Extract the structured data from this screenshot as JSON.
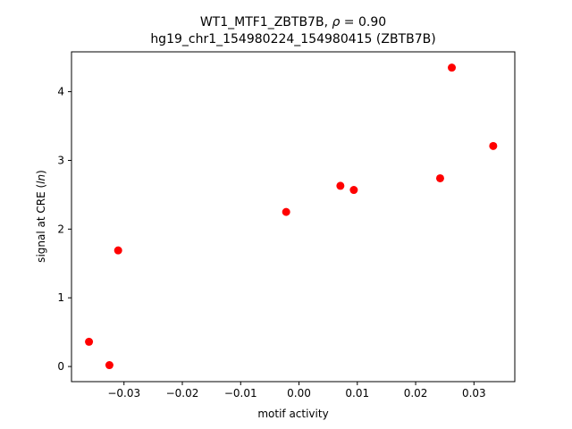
{
  "chart_data": {
    "type": "scatter",
    "title_line1": "WT1_MTF1_ZBTB7B, ",
    "title_rho_symbol": "ρ",
    "title_rho_value": " = 0.90",
    "title_line2": "hg19_chr1_154980224_154980415 (ZBTB7B)",
    "xlabel": "motif activity",
    "ylabel_prefix": "signal at CRE (",
    "ylabel_italic": "ln",
    "ylabel_suffix": ")",
    "xlim": [
      -0.039,
      0.037
    ],
    "ylim": [
      -0.22,
      4.58
    ],
    "xticks": [
      {
        "value": -0.03,
        "label": "−0.03"
      },
      {
        "value": -0.02,
        "label": "−0.02"
      },
      {
        "value": -0.01,
        "label": "−0.01"
      },
      {
        "value": 0.0,
        "label": "0.00"
      },
      {
        "value": 0.01,
        "label": "0.01"
      },
      {
        "value": 0.02,
        "label": "0.02"
      },
      {
        "value": 0.03,
        "label": "0.03"
      }
    ],
    "yticks": [
      {
        "value": 0,
        "label": "0"
      },
      {
        "value": 1,
        "label": "1"
      },
      {
        "value": 2,
        "label": "2"
      },
      {
        "value": 3,
        "label": "3"
      },
      {
        "value": 4,
        "label": "4"
      }
    ],
    "marker_color": "#ff0000",
    "points": [
      {
        "x": -0.036,
        "y": 0.36
      },
      {
        "x": -0.0325,
        "y": 0.02
      },
      {
        "x": -0.031,
        "y": 1.69
      },
      {
        "x": -0.0022,
        "y": 2.25
      },
      {
        "x": 0.0071,
        "y": 2.63
      },
      {
        "x": 0.0094,
        "y": 2.57
      },
      {
        "x": 0.0242,
        "y": 2.74
      },
      {
        "x": 0.0262,
        "y": 4.35
      },
      {
        "x": 0.0333,
        "y": 3.21
      }
    ]
  }
}
